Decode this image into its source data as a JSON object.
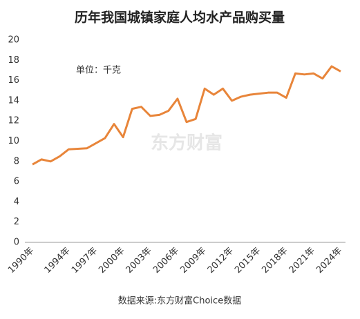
{
  "chart_data": {
    "type": "line",
    "title": "历年我国城镇家庭人均水产品购买量",
    "annotation": "单位：千克",
    "watermark": "东方财富",
    "source": "数据来源:东方财富Choice数据",
    "categories": [
      "1990年",
      null,
      null,
      null,
      "1994年",
      null,
      null,
      "1997年",
      null,
      null,
      "2000年",
      null,
      null,
      "2003年",
      null,
      null,
      "2006年",
      null,
      null,
      "2009年",
      null,
      null,
      "2012年",
      null,
      null,
      "2015年",
      null,
      null,
      "2018年",
      null,
      null,
      "2021年",
      null,
      null,
      "2024年"
    ],
    "series": [
      {
        "name": "人均水产品购买量",
        "color": "#e8853a",
        "values": [
          7.7,
          8.2,
          8.0,
          8.5,
          9.2,
          9.25,
          9.3,
          9.8,
          10.3,
          11.7,
          10.4,
          13.2,
          13.4,
          12.5,
          12.6,
          13.0,
          14.2,
          11.9,
          12.2,
          15.2,
          14.6,
          15.2,
          14.0,
          14.4,
          14.6,
          14.7,
          14.8,
          14.8,
          14.3,
          16.7,
          16.6,
          16.7,
          16.2,
          17.4,
          16.9
        ]
      }
    ],
    "ylim": [
      0,
      20
    ],
    "yticks": [
      0,
      2,
      4,
      6,
      8,
      10,
      12,
      14,
      16,
      18,
      20
    ],
    "grid": false
  }
}
